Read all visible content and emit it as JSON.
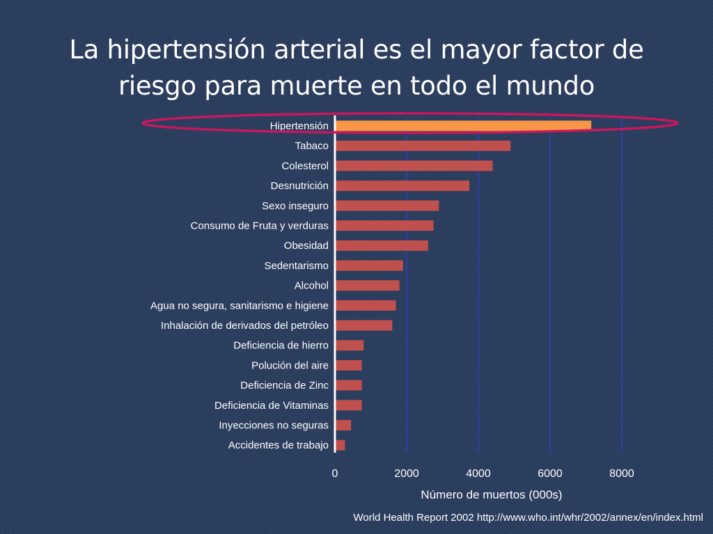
{
  "slide": {
    "title_line1": "La hipertensión arterial es el mayor factor de",
    "title_line2": "riesgo para muerte en todo el mundo",
    "source": "World Health Report 2002 http://www.who.int/whr/2002/annex/en/index.html"
  },
  "chart_data": {
    "type": "bar",
    "orientation": "horizontal",
    "categories": [
      "Hipertensión",
      "Tabaco",
      "Colesterol",
      "Desnutrición",
      "Sexo inseguro",
      "Consumo de Fruta y verduras",
      "Obesidad",
      "Sedentarismo",
      "Alcohol",
      "Agua no segura, sanitarismo e higiene",
      "Inhalación de derivados del petróleo",
      "Deficiencia de hierro",
      "Polución del aire",
      "Deficiencia de Zinc",
      "Deficiencia de Vitaminas",
      "Inyecciones no seguras",
      "Accidentes de  trabajo"
    ],
    "values": [
      7150,
      4900,
      4400,
      3750,
      2900,
      2750,
      2600,
      1900,
      1800,
      1700,
      1600,
      800,
      750,
      750,
      750,
      450,
      280
    ],
    "highlight_index": 0,
    "xlabel": "Número de muertos (000s)",
    "ylabel": "",
    "xlim": [
      0,
      8000
    ],
    "xticks": [
      "0",
      "2000",
      "4000",
      "6000",
      "8000"
    ],
    "grid": "vertical",
    "colors": {
      "bar": "#c0504d",
      "highlight_bar": "#f79646",
      "grid": "#2f3fbf",
      "highlight_ring": "#c8175d",
      "text": "#ffffff"
    }
  }
}
